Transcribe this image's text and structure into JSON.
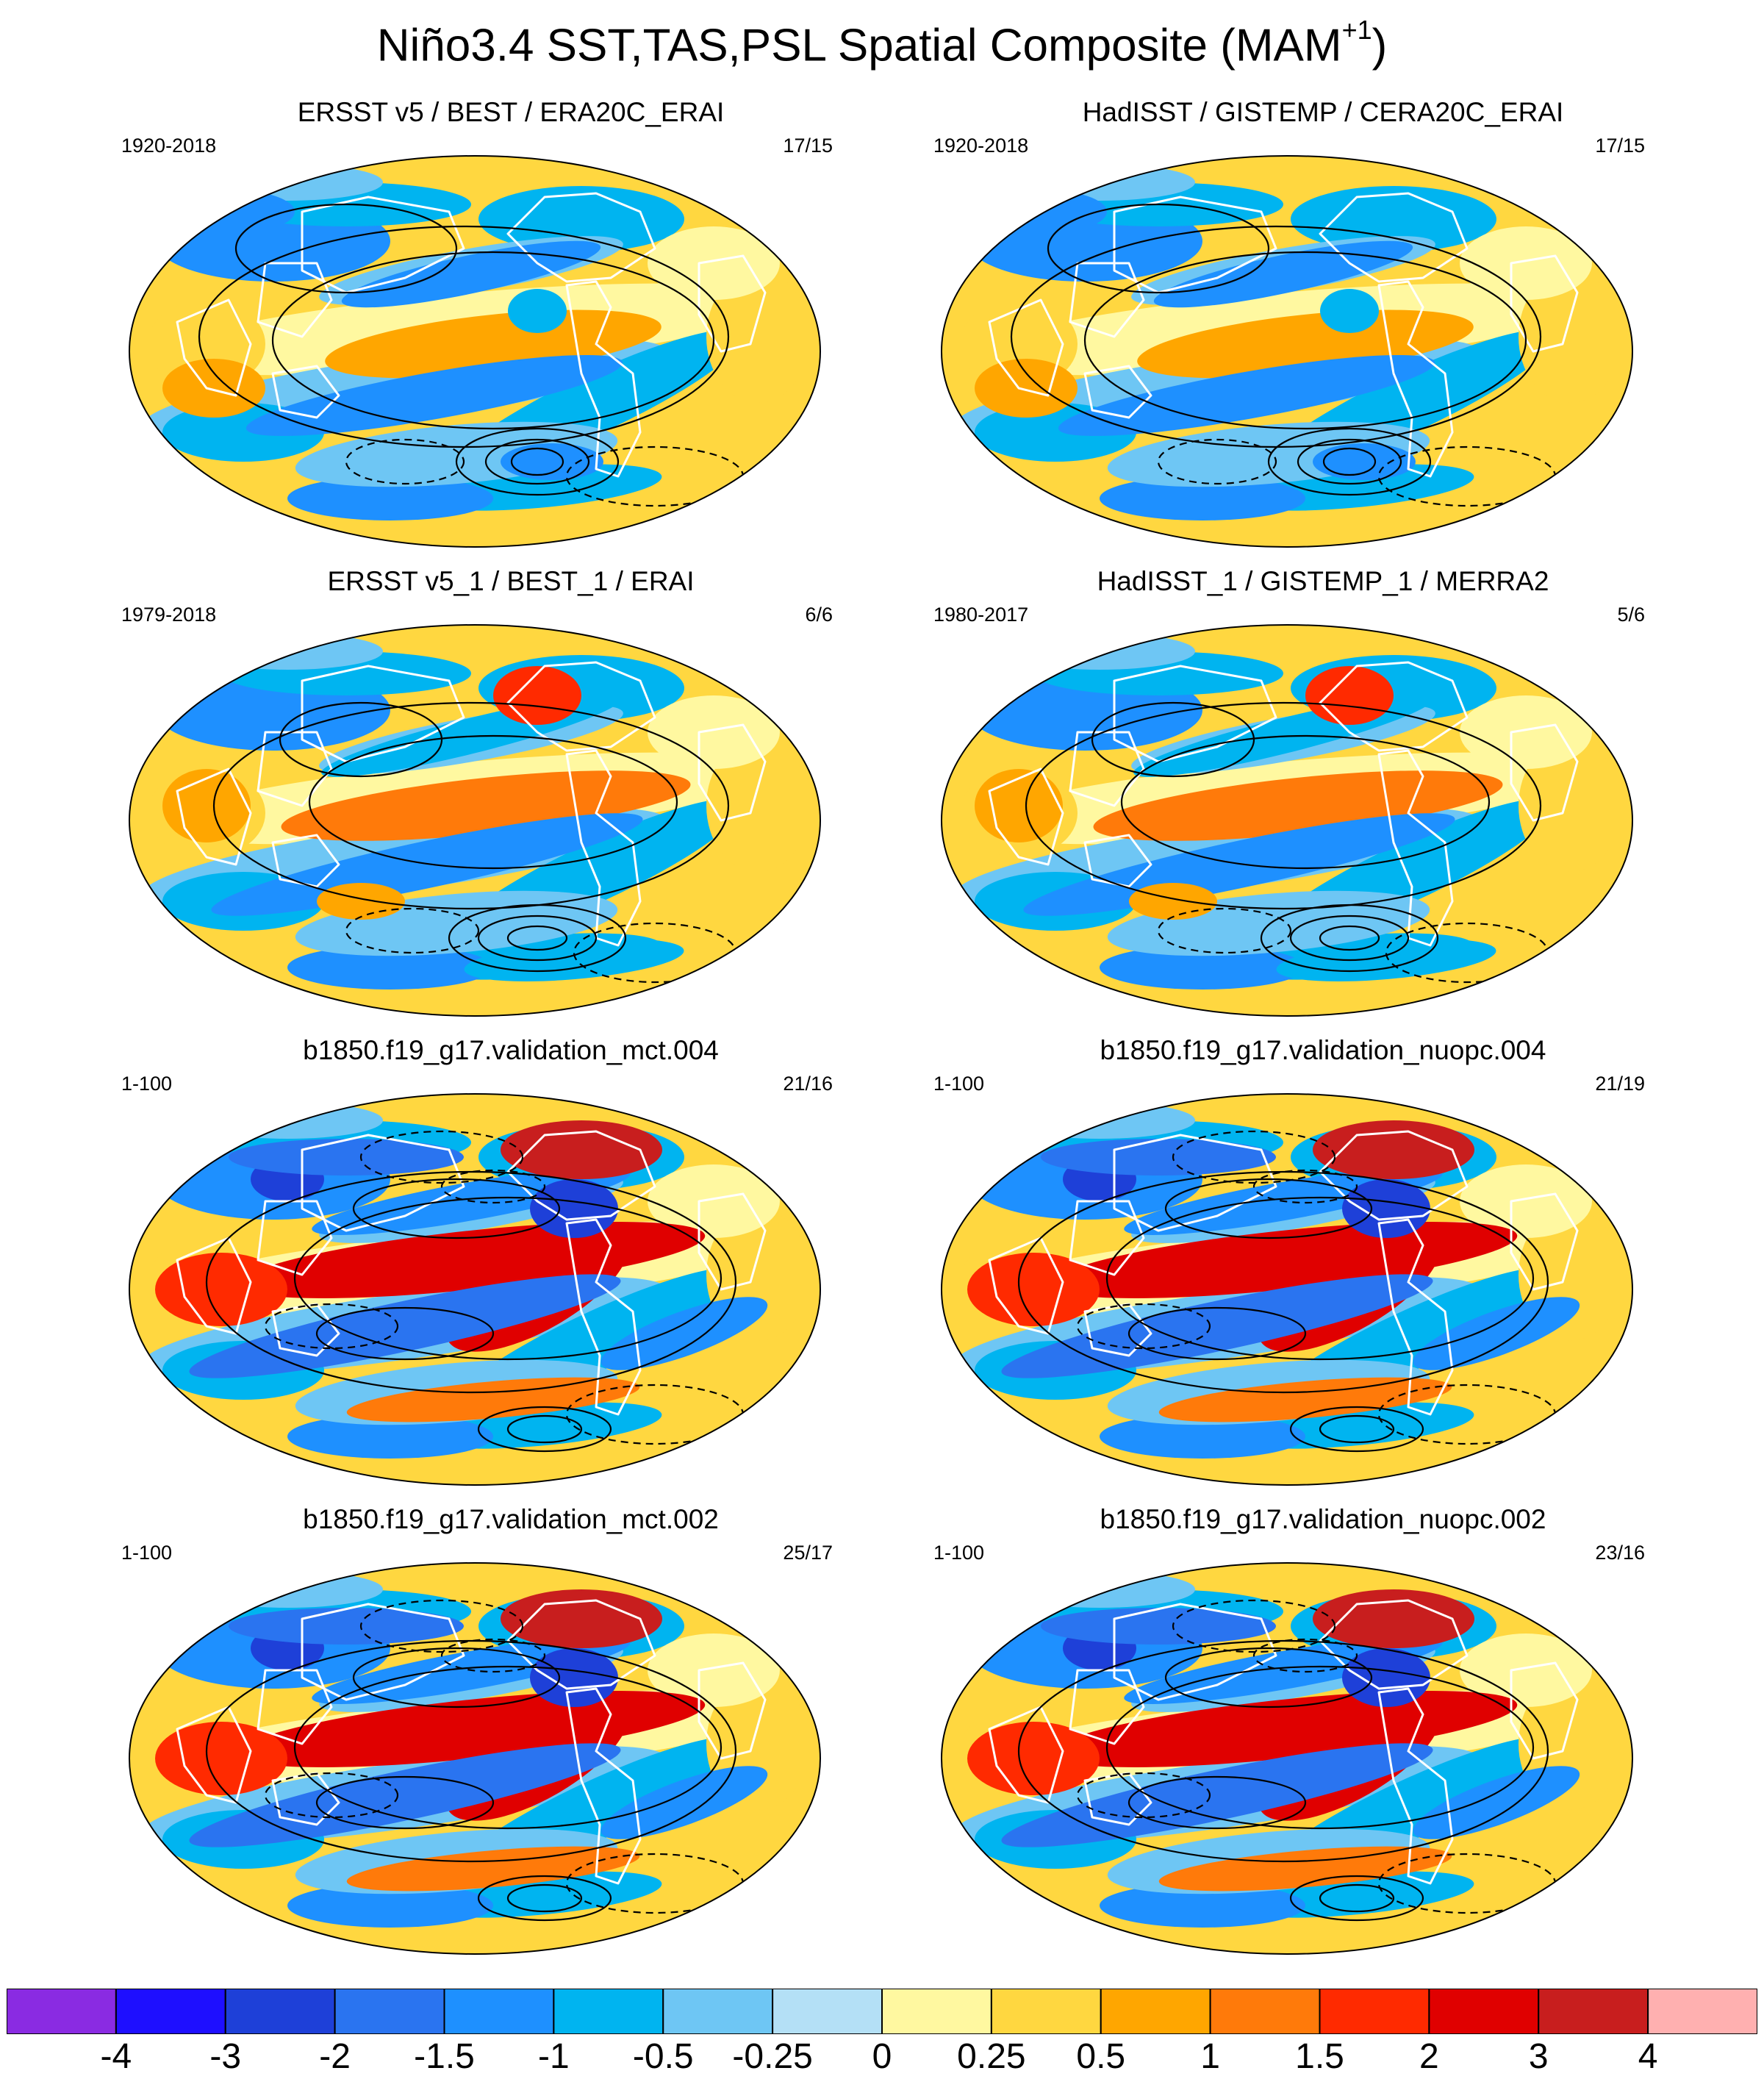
{
  "figure": {
    "title": "Niño3.4 SST,TAS,PSL Spatial Composite (MAM",
    "title_superscript": "+1",
    "title_close": ")"
  },
  "panels": [
    {
      "title": "ERSST v5 / BEST / ERA20C_ERAI",
      "period": "1920-2018",
      "ratio": "17/15",
      "pattern": "obs"
    },
    {
      "title": "HadISST / GISTEMP / CERA20C_ERAI",
      "period": "1920-2018",
      "ratio": "17/15",
      "pattern": "obs"
    },
    {
      "title": "ERSST v5_1 / BEST_1 / ERAI",
      "period": "1979-2018",
      "ratio": "6/6",
      "pattern": "obs-strong"
    },
    {
      "title": "HadISST_1 / GISTEMP_1 / MERRA2",
      "period": "1980-2017",
      "ratio": "5/6",
      "pattern": "obs-strong"
    },
    {
      "title": "b1850.f19_g17.validation_mct.004",
      "period": "1-100",
      "ratio": "21/16",
      "pattern": "model"
    },
    {
      "title": "b1850.f19_g17.validation_nuopc.004",
      "period": "1-100",
      "ratio": "21/19",
      "pattern": "model"
    },
    {
      "title": "b1850.f19_g17.validation_mct.002",
      "period": "1-100",
      "ratio": "25/17",
      "pattern": "model"
    },
    {
      "title": "b1850.f19_g17.validation_nuopc.002",
      "period": "1-100",
      "ratio": "23/16",
      "pattern": "model"
    }
  ],
  "colorbar": {
    "labels": [
      "-4",
      "-3",
      "-2",
      "-1.5",
      "-1",
      "-0.5",
      "-0.25",
      "0",
      "0.25",
      "0.5",
      "1",
      "1.5",
      "2",
      "3",
      "4"
    ],
    "colors": [
      "#8a2be2",
      "#1e0fff",
      "#1e40d8",
      "#2a74f0",
      "#1e90ff",
      "#00b4f0",
      "#6ec6f4",
      "#b4e0f6",
      "#fff8a0",
      "#ffd740",
      "#ffa600",
      "#ff7a0a",
      "#ff2a00",
      "#e00000",
      "#c81e1e",
      "#ffb0b0"
    ]
  }
}
